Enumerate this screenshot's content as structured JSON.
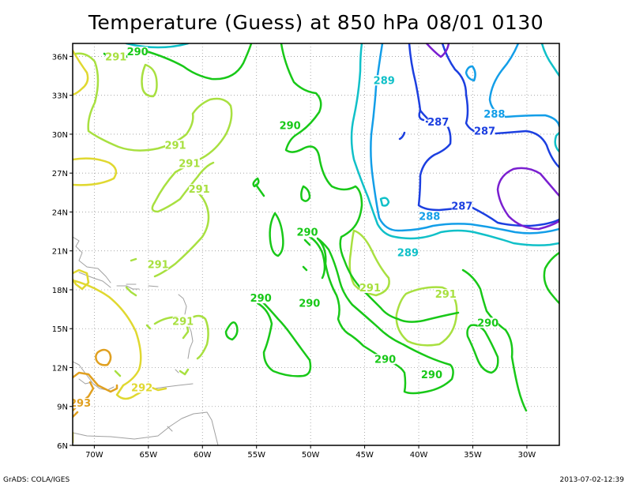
{
  "title": "Temperature (Guess) at 850 hPa 08/01 0130",
  "footer": {
    "left": "GrADS: COLA/IGES",
    "right": "2013-07-02-12:39"
  },
  "map": {
    "lon_range": [
      -72,
      -27
    ],
    "lat_range": [
      6,
      37
    ],
    "lon_ticks": [
      {
        "lon": -70,
        "label": "70W"
      },
      {
        "lon": -65,
        "label": "65W"
      },
      {
        "lon": -60,
        "label": "60W"
      },
      {
        "lon": -55,
        "label": "55W"
      },
      {
        "lon": -50,
        "label": "50W"
      },
      {
        "lon": -45,
        "label": "45W"
      },
      {
        "lon": -40,
        "label": "40W"
      },
      {
        "lon": -35,
        "label": "35W"
      },
      {
        "lon": -30,
        "label": "30W"
      }
    ],
    "lat_ticks": [
      {
        "lat": 6,
        "label": "6N"
      },
      {
        "lat": 9,
        "label": "9N"
      },
      {
        "lat": 12,
        "label": "12N"
      },
      {
        "lat": 15,
        "label": "15N"
      },
      {
        "lat": 18,
        "label": "18N"
      },
      {
        "lat": 21,
        "label": "21N"
      },
      {
        "lat": 24,
        "label": "24N"
      },
      {
        "lat": 27,
        "label": "27N"
      },
      {
        "lat": 30,
        "label": "30N"
      },
      {
        "lat": 33,
        "label": "33N"
      },
      {
        "lat": 36,
        "label": "36N"
      }
    ],
    "grid": "dotted",
    "colors": {
      "286": "#7a1fd0",
      "287": "#1c3fe0",
      "288": "#139ee8",
      "289": "#10c0c8",
      "290": "#18c818",
      "291": "#a8e040",
      "292": "#e0d830",
      "293": "#e0a020",
      "coast": "#a0a0a0"
    },
    "labels": [
      {
        "text": "290",
        "level": "290",
        "lon": -66.0,
        "lat": 36.2
      },
      {
        "text": "291",
        "level": "291",
        "lon": -68.0,
        "lat": 35.8
      },
      {
        "text": "289",
        "level": "289",
        "lon": -43.2,
        "lat": 34.0
      },
      {
        "text": "290",
        "level": "290",
        "lon": -51.9,
        "lat": 30.5
      },
      {
        "text": "287",
        "level": "287",
        "lon": -38.2,
        "lat": 30.8
      },
      {
        "text": "288",
        "level": "288",
        "lon": -33.0,
        "lat": 31.4
      },
      {
        "text": "287",
        "level": "287",
        "lon": -33.9,
        "lat": 30.1
      },
      {
        "text": "291",
        "level": "291",
        "lon": -62.5,
        "lat": 29.0
      },
      {
        "text": "291",
        "level": "291",
        "lon": -61.2,
        "lat": 27.6
      },
      {
        "text": "291",
        "level": "291",
        "lon": -60.3,
        "lat": 25.6
      },
      {
        "text": "287",
        "level": "287",
        "lon": -36.0,
        "lat": 24.3
      },
      {
        "text": "288",
        "level": "288",
        "lon": -39.0,
        "lat": 23.5
      },
      {
        "text": "290",
        "level": "290",
        "lon": -50.3,
        "lat": 22.3
      },
      {
        "text": "289",
        "level": "289",
        "lon": -41.0,
        "lat": 20.7
      },
      {
        "text": "291",
        "level": "291",
        "lon": -64.1,
        "lat": 19.8
      },
      {
        "text": "291",
        "level": "291",
        "lon": -44.5,
        "lat": 18.0
      },
      {
        "text": "291",
        "level": "291",
        "lon": -37.5,
        "lat": 17.5
      },
      {
        "text": "290",
        "level": "290",
        "lon": -54.6,
        "lat": 17.2
      },
      {
        "text": "290",
        "level": "290",
        "lon": -50.1,
        "lat": 16.8
      },
      {
        "text": "291",
        "level": "291",
        "lon": -61.8,
        "lat": 15.4
      },
      {
        "text": "290",
        "level": "290",
        "lon": -33.6,
        "lat": 15.3
      },
      {
        "text": "290",
        "level": "290",
        "lon": -43.1,
        "lat": 12.5
      },
      {
        "text": "290",
        "level": "290",
        "lon": -38.8,
        "lat": 11.3
      },
      {
        "text": "292",
        "level": "292",
        "lon": -65.6,
        "lat": 10.3
      },
      {
        "text": "293",
        "level": "293",
        "lon": -71.3,
        "lat": 9.1
      }
    ]
  }
}
